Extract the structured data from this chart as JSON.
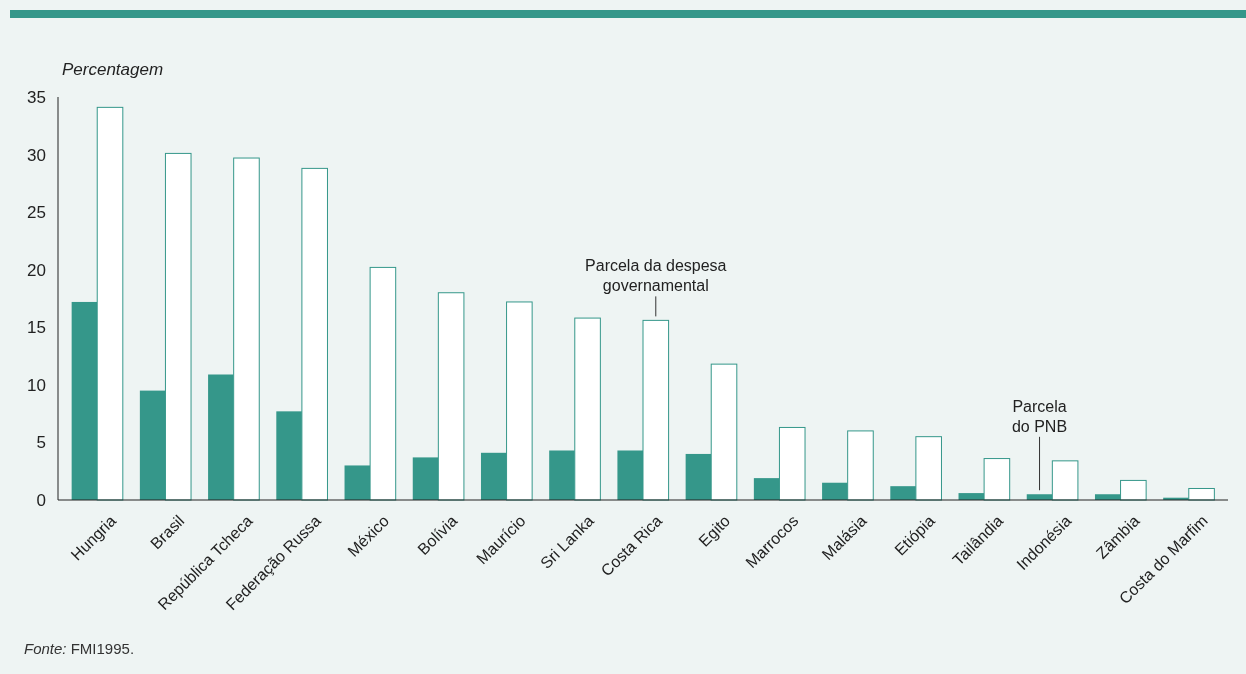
{
  "chart_data": {
    "type": "bar",
    "ylabel": "Percentagem",
    "categories": [
      "Hungria",
      "Brasil",
      "República Tcheca",
      "Federação Russa",
      "México",
      "Bolívia",
      "Maurício",
      "Sri Lanka",
      "Costa Rica",
      "Egito",
      "Marrocos",
      "Malásia",
      "Etiópia",
      "Tailândia",
      "Indonésia",
      "Zâmbia",
      "Costa do Marfim"
    ],
    "series": [
      {
        "name": "Parcela do PNB",
        "color": "#35978a",
        "values": [
          17.2,
          9.5,
          10.9,
          7.7,
          3.0,
          3.7,
          4.1,
          4.3,
          4.3,
          4.0,
          1.9,
          1.5,
          1.2,
          0.6,
          0.5,
          0.5,
          0.2
        ]
      },
      {
        "name": "Parcela da despesa governamental",
        "color": "#ffffff",
        "values": [
          34.1,
          30.1,
          29.7,
          28.8,
          20.2,
          18.0,
          17.2,
          15.8,
          15.6,
          11.8,
          6.3,
          6.0,
          5.5,
          3.6,
          3.4,
          1.7,
          1.0
        ]
      }
    ],
    "ylim": [
      0,
      35
    ],
    "yticks": [
      0,
      5,
      10,
      15,
      20,
      25,
      30,
      35
    ],
    "grid": false,
    "annotations": [
      "Fonte: FMI1995."
    ]
  }
}
